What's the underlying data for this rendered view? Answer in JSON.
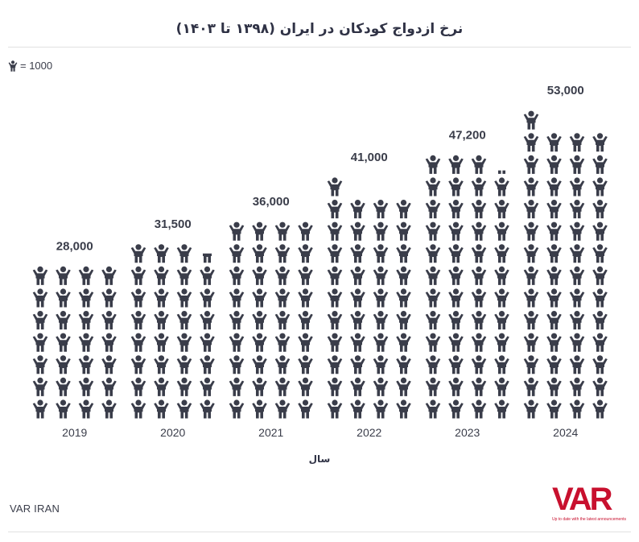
{
  "header": {
    "title": "نرخ ازدواج کودکان در ایران (۱۳۹۸ تا ۱۴۰۳)",
    "legend_label": "= 1000",
    "legend_icon": "person-icon"
  },
  "footer": {
    "source": "VAR IRAN",
    "logo_text": "VAR",
    "logo_tagline": "Up to date with the latest announcements"
  },
  "colors": {
    "icon": "#3a3d4a",
    "brand": "#c8102e"
  },
  "chart_data": {
    "type": "bar",
    "style": "pictogram",
    "unit_per_icon": 1000,
    "categories": [
      "2019",
      "2020",
      "2021",
      "2022",
      "2023",
      "2024"
    ],
    "values": [
      28000,
      31500,
      36000,
      41000,
      47200,
      53000
    ],
    "data_labels": [
      "28,000",
      "31,500",
      "36,000",
      "41,000",
      "47,200",
      "53,000"
    ],
    "xlabel": "سال",
    "ylabel": "",
    "title": "نرخ ازدواج کودکان در ایران (۱۳۹۸ تا ۱۴۰۳)",
    "grid": false,
    "legend": "top-left"
  }
}
